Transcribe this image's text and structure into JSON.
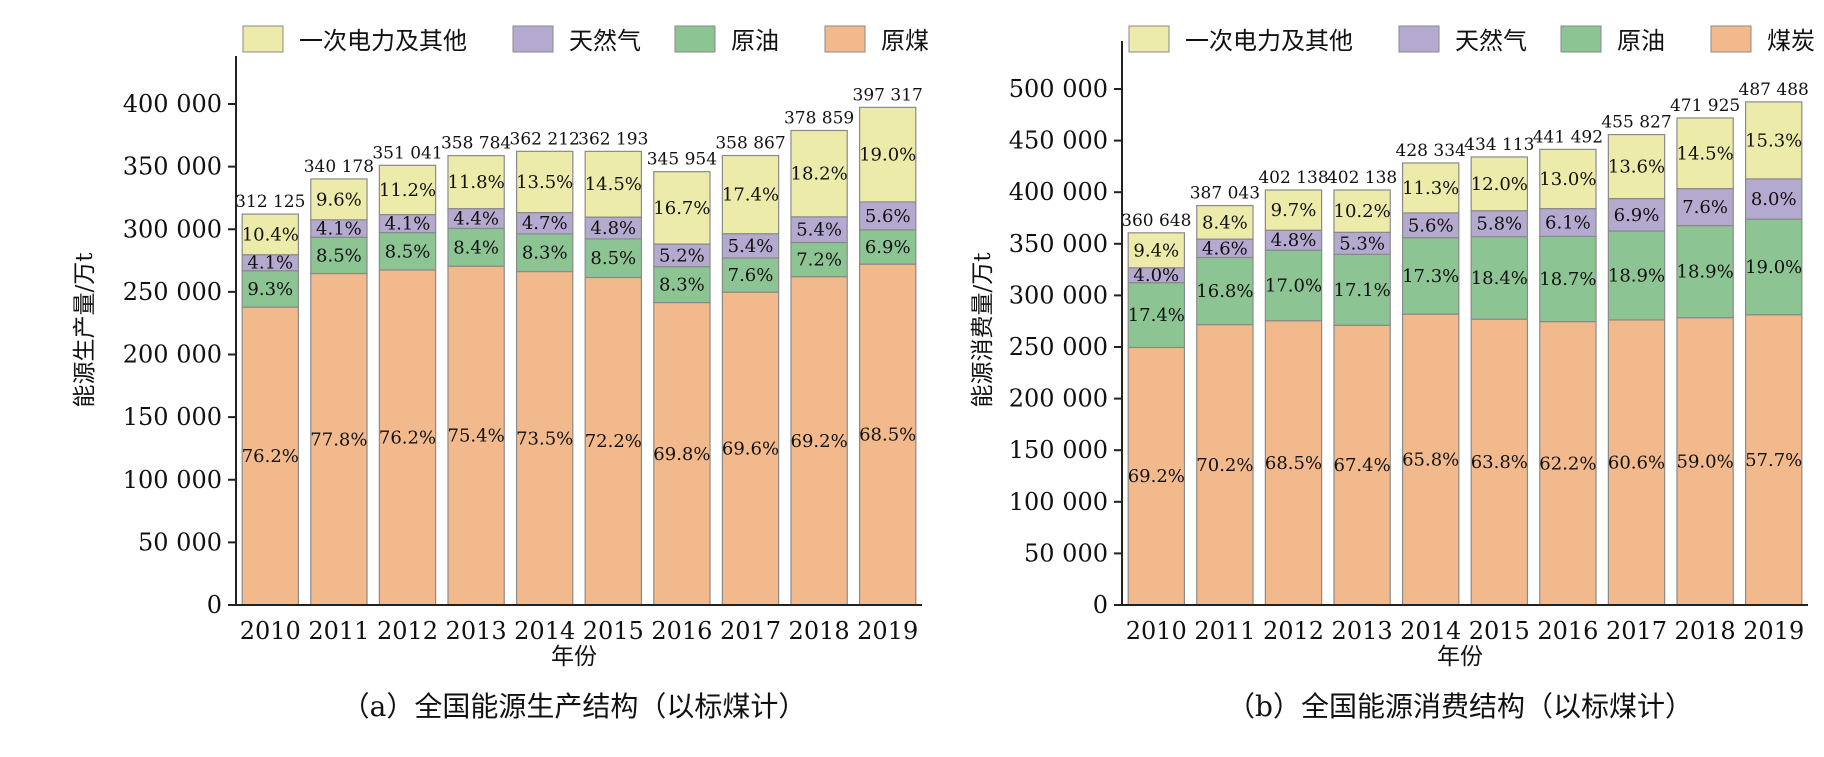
{
  "colors": {
    "other": "#ecebaa",
    "gas": "#b4a9cf",
    "oil": "#8cc593",
    "coal": "#f2ba8c",
    "bar_stroke": "#8a8a8a",
    "axis": "#222222"
  },
  "chart_data": [
    {
      "type": "bar",
      "stacked": true,
      "caption": "（a）全国能源生产结构（以标煤计）",
      "xlabel": "年份",
      "ylabel": "能源生产量/万t",
      "ylim": [
        0,
        400000
      ],
      "yticks": [
        0,
        50000,
        100000,
        150000,
        200000,
        250000,
        300000,
        350000,
        400000
      ],
      "ytick_labels": [
        "0",
        "50 000",
        "100 000",
        "150 000",
        "200 000",
        "250 000",
        "300 000",
        "350 000",
        "400 000"
      ],
      "categories": [
        "2010",
        "2011",
        "2012",
        "2013",
        "2014",
        "2015",
        "2016",
        "2017",
        "2018",
        "2019"
      ],
      "totals": [
        312125,
        340178,
        351041,
        358784,
        362212,
        362193,
        345954,
        358867,
        378859,
        397317
      ],
      "total_labels": [
        "312 125",
        "340 178",
        "351 041",
        "358 784",
        "362 212",
        "362 193",
        "345 954",
        "358 867",
        "378 859",
        "397 317"
      ],
      "legend": [
        "一次电力及其他",
        "天然气",
        "原油",
        "原煤"
      ],
      "legend_position": "top",
      "series": [
        {
          "name": "原煤",
          "color_key": "coal",
          "percent": [
            76.2,
            77.8,
            76.2,
            75.4,
            73.5,
            72.2,
            69.8,
            69.6,
            69.2,
            68.5
          ],
          "labels": [
            "76.2%",
            "77.8%",
            "76.2%",
            "75.4%",
            "73.5%",
            "72.2%",
            "69.8%",
            "69.6%",
            "69.2%",
            "68.5%"
          ]
        },
        {
          "name": "原油",
          "color_key": "oil",
          "percent": [
            9.3,
            8.5,
            8.5,
            8.4,
            8.3,
            8.5,
            8.3,
            7.6,
            7.2,
            6.9
          ],
          "labels": [
            "9.3%",
            "8.5%",
            "8.5%",
            "8.4%",
            "8.3%",
            "8.5%",
            "8.3%",
            "7.6%",
            "7.2%",
            "6.9%"
          ]
        },
        {
          "name": "天然气",
          "color_key": "gas",
          "percent": [
            4.1,
            4.1,
            4.1,
            4.4,
            4.7,
            4.8,
            5.2,
            5.4,
            5.4,
            5.6
          ],
          "labels": [
            "4.1%",
            "4.1%",
            "4.1%",
            "4.4%",
            "4.7%",
            "4.8%",
            "5.2%",
            "5.4%",
            "5.4%",
            "5.6%"
          ]
        },
        {
          "name": "一次电力及其他",
          "color_key": "other",
          "percent": [
            10.4,
            9.6,
            11.2,
            11.8,
            13.5,
            14.5,
            16.7,
            17.4,
            18.2,
            19.0
          ],
          "labels": [
            "10.4%",
            "9.6%",
            "11.2%",
            "11.8%",
            "13.5%",
            "14.5%",
            "16.7%",
            "17.4%",
            "18.2%",
            "19.0%"
          ]
        }
      ]
    },
    {
      "type": "bar",
      "stacked": true,
      "caption": "（b）全国能源消费结构（以标煤计）",
      "xlabel": "年份",
      "ylabel": "能源消费量/万t",
      "ylim": [
        0,
        500000
      ],
      "yticks": [
        0,
        50000,
        100000,
        150000,
        200000,
        250000,
        300000,
        350000,
        400000,
        450000,
        500000
      ],
      "ytick_labels": [
        "0",
        "50 000",
        "100 000",
        "150 000",
        "200 000",
        "250 000",
        "300 000",
        "350 000",
        "400 000",
        "450 000",
        "500 000"
      ],
      "categories": [
        "2010",
        "2011",
        "2012",
        "2013",
        "2014",
        "2015",
        "2016",
        "2017",
        "2018",
        "2019"
      ],
      "totals": [
        360648,
        387043,
        402138,
        402138,
        428334,
        434113,
        441492,
        455827,
        471925,
        487488
      ],
      "total_labels": [
        "360 648",
        "387 043",
        "402 138",
        "402 138",
        "428 334",
        "434 113",
        "441 492",
        "455 827",
        "471 925",
        "487 488"
      ],
      "legend": [
        "一次电力及其他",
        "天然气",
        "原油",
        "煤炭"
      ],
      "legend_position": "top",
      "series": [
        {
          "name": "煤炭",
          "color_key": "coal",
          "percent": [
            69.2,
            70.2,
            68.5,
            67.4,
            65.8,
            63.8,
            62.2,
            60.6,
            59.0,
            57.7
          ],
          "labels": [
            "69.2%",
            "70.2%",
            "68.5%",
            "67.4%",
            "65.8%",
            "63.8%",
            "62.2%",
            "60.6%",
            "59.0%",
            "57.7%"
          ]
        },
        {
          "name": "原油",
          "color_key": "oil",
          "percent": [
            17.4,
            16.8,
            17.0,
            17.1,
            17.3,
            18.4,
            18.7,
            18.9,
            18.9,
            19.0
          ],
          "labels": [
            "17.4%",
            "16.8%",
            "17.0%",
            "17.1%",
            "17.3%",
            "18.4%",
            "18.7%",
            "18.9%",
            "18.9%",
            "19.0%"
          ]
        },
        {
          "name": "天然气",
          "color_key": "gas",
          "percent": [
            4.0,
            4.6,
            4.8,
            5.3,
            5.6,
            5.8,
            6.1,
            6.9,
            7.6,
            8.0
          ],
          "labels": [
            "4.0%",
            "4.6%",
            "4.8%",
            "5.3%",
            "5.6%",
            "5.8%",
            "6.1%",
            "6.9%",
            "7.6%",
            "8.0%"
          ]
        },
        {
          "name": "一次电力及其他",
          "color_key": "other",
          "percent": [
            9.4,
            8.4,
            9.7,
            10.2,
            11.3,
            12.0,
            13.0,
            13.6,
            14.5,
            15.3
          ],
          "labels": [
            "9.4%",
            "8.4%",
            "9.7%",
            "10.2%",
            "11.3%",
            "12.0%",
            "13.0%",
            "13.6%",
            "14.5%",
            "15.3%"
          ]
        }
      ]
    }
  ]
}
